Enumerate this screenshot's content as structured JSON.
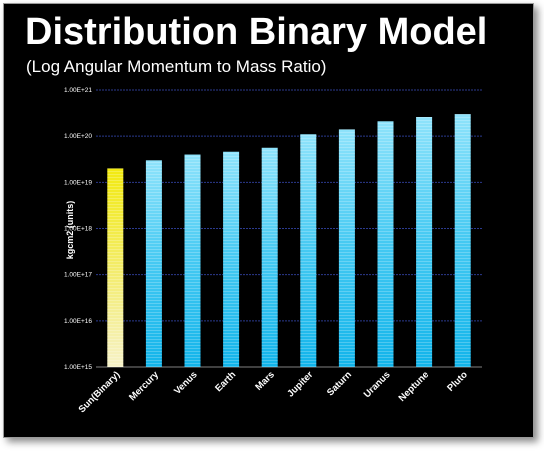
{
  "chart_data": {
    "type": "bar",
    "title": "Distribution Binary Model",
    "subtitle": "(Log Angular Momentum to Mass Ratio)",
    "xlabel": "",
    "ylabel": "kgcm2 (units)",
    "yscale": "log",
    "ylim": [
      1000000000000000.0,
      1e+21
    ],
    "yticks": [
      1000000000000000.0,
      1e+16,
      1e+17,
      1e+18,
      1e+19,
      1e+20,
      1e+21
    ],
    "ytick_labels": [
      "1.00E+15",
      "1.00E+16",
      "1.00E+17",
      "1.00E+18",
      "1.00E+19",
      "1.00E+20",
      "1.00E+21"
    ],
    "grid": true,
    "categories": [
      "Sun(Binary)",
      "Mercury",
      "Venus",
      "Earth",
      "Mars",
      "Jupiter",
      "Saturn",
      "Uranus",
      "Neptune",
      "Pluto"
    ],
    "values": [
      2e+19,
      3e+19,
      4e+19,
      4.6e+19,
      5.6e+19,
      1.1e+20,
      1.4e+20,
      2.1e+20,
      2.6e+20,
      3e+20
    ],
    "colors": {
      "highlight": "#f4ee1a",
      "bar": "#27c3f0",
      "grid": "#2b3a8e",
      "background": "#000000"
    }
  }
}
